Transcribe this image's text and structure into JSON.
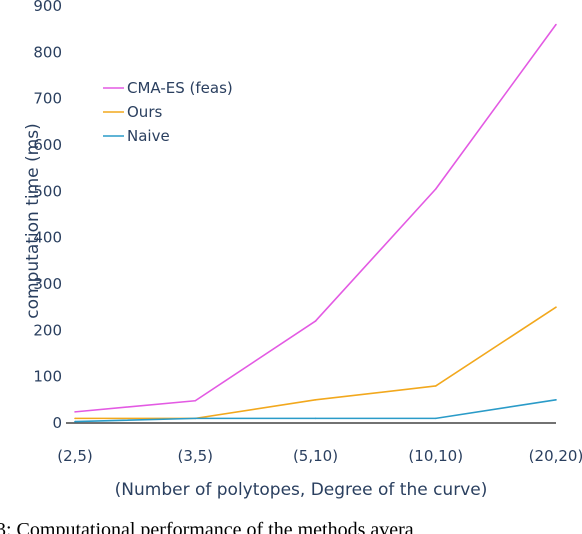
{
  "chart_data": {
    "type": "line",
    "categories": [
      "(2,5)",
      "(3,5)",
      "(5,10)",
      "(10,10)",
      "(20,20)"
    ],
    "series": [
      {
        "name": "CMA-ES (feas)",
        "values": [
          24,
          48,
          220,
          505,
          860
        ],
        "color": "#e35ae3"
      },
      {
        "name": "Ours",
        "values": [
          10,
          10,
          50,
          80,
          250
        ],
        "color": "#f2a81d"
      },
      {
        "name": "Naive",
        "values": [
          3,
          10,
          10,
          10,
          50
        ],
        "color": "#2a9bc8"
      }
    ],
    "xlabel": "(Number of polytopes, Degree of the curve)",
    "ylabel": "computation time (ms)",
    "ylim": [
      0,
      900
    ],
    "yticks": [
      0,
      100,
      200,
      300,
      400,
      500,
      600,
      700,
      800,
      900
    ],
    "grid": false,
    "legend_position": "top-left"
  },
  "caption": {
    "text": "3: Computational performance of the methods avera"
  }
}
